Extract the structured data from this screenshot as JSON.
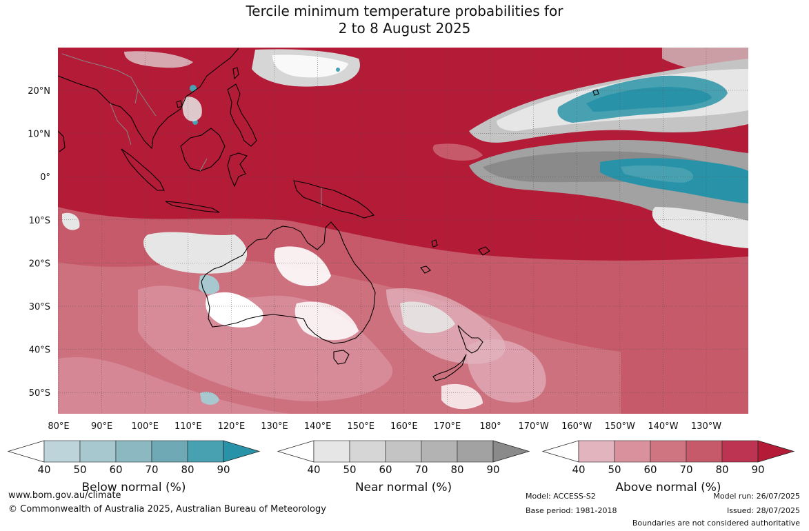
{
  "title": "Tercile minimum temperature probabilities for\n2 to 8 August 2025",
  "map": {
    "lat_labels": [
      "20°N",
      "10°N",
      "0°",
      "10°S",
      "20°S",
      "30°S",
      "40°S",
      "50°S"
    ],
    "lon_labels": [
      "80°E",
      "90°E",
      "100°E",
      "110°E",
      "120°E",
      "130°E",
      "140°E",
      "150°E",
      "160°E",
      "170°E",
      "180°",
      "170°W",
      "160°W",
      "150°W",
      "140°W",
      "130°W"
    ]
  },
  "legends": [
    {
      "name": "below",
      "title": "Below normal (%)",
      "ticks": [
        "40",
        "50",
        "60",
        "70",
        "80",
        "90"
      ],
      "colors": [
        "#bcd4da",
        "#a6c8ce",
        "#8cb9c1",
        "#6ea9b5",
        "#47a1b1",
        "#2893a8"
      ]
    },
    {
      "name": "near",
      "title": "Near normal (%)",
      "ticks": [
        "40",
        "50",
        "60",
        "70",
        "80",
        "90"
      ],
      "colors": [
        "#e6e6e6",
        "#d6d6d6",
        "#c4c4c4",
        "#b3b3b3",
        "#a2a2a2",
        "#8a8a8a"
      ]
    },
    {
      "name": "above",
      "title": "Above normal (%)",
      "ticks": [
        "40",
        "50",
        "60",
        "70",
        "80",
        "90"
      ],
      "colors": [
        "#e2b4bd",
        "#d9919e",
        "#cf7582",
        "#c65a6a",
        "#bc3451",
        "#b31b37"
      ]
    }
  ],
  "footer": {
    "website": "www.bom.gov.au/climate",
    "copyright": "© Commonwealth of Australia 2025, Australian Bureau of Meteorology",
    "model": "Model: ACCESS-S2",
    "base_period": "Base period: 1981-2018",
    "model_run": "Model run: 26/07/2025",
    "issued": "Issued: 28/07/2025",
    "disclaimer": "Boundaries are not considered authoritative"
  }
}
